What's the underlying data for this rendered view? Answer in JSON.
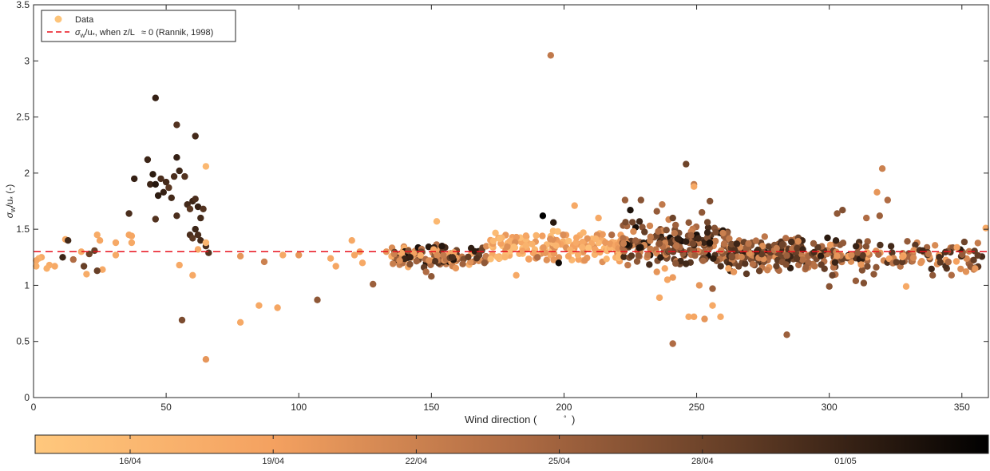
{
  "chart_data": {
    "type": "scatter",
    "xlabel": "Wind direction (",
    "xlabel_unit": "°",
    "ylabel": "σ_w/u_* (-)",
    "xlim": [
      0,
      360
    ],
    "ylim": [
      0,
      3.5
    ],
    "x_ticks": [
      0,
      50,
      100,
      150,
      200,
      250,
      300,
      350
    ],
    "y_ticks": [
      0,
      0.5,
      1,
      1.5,
      2,
      2.5,
      3,
      3.5
    ],
    "grid": false,
    "legend_position": "top-left",
    "legend": [
      {
        "label": "Data",
        "marker": "filled-circle",
        "color": "#fdc47a"
      },
      {
        "label_prefix": "σ",
        "label_sub1": "w",
        "label_mid": "/u",
        "label_sub2": "*",
        "label_suffix": ", when z/L",
        "label_approx": "≈ 0 (Rannik, 1998)",
        "style": "dashed-line",
        "color": "#e8101c"
      }
    ],
    "reference_line": {
      "y": 1.3,
      "color": "#e8101c",
      "style": "dashed"
    },
    "colorbar": {
      "orientation": "horizontal",
      "position": "bottom",
      "colormap": "copper-reversed",
      "colors": [
        "#ffc87d",
        "#f4a160",
        "#b06c44",
        "#5e3a24",
        "#000000"
      ],
      "tick_labels": [
        "16/04",
        "19/04",
        "22/04",
        "25/04",
        "28/04",
        "01/05"
      ]
    },
    "points": [
      [
        46,
        2.67,
        0.86
      ],
      [
        54,
        2.43,
        0.78
      ],
      [
        61,
        2.33,
        0.82
      ],
      [
        65,
        2.06,
        0.1
      ],
      [
        43,
        2.12,
        0.84
      ],
      [
        45,
        1.99,
        0.88
      ],
      [
        44,
        1.9,
        0.84
      ],
      [
        46,
        1.9,
        0.9
      ],
      [
        48,
        1.95,
        0.8
      ],
      [
        49,
        1.83,
        0.86
      ],
      [
        50,
        1.92,
        0.82
      ],
      [
        51,
        1.87,
        0.76
      ],
      [
        53,
        1.97,
        0.8
      ],
      [
        55,
        2.02,
        0.84
      ],
      [
        57,
        1.97,
        0.78
      ],
      [
        54,
        2.14,
        0.86
      ],
      [
        52,
        1.78,
        0.82
      ],
      [
        47,
        1.8,
        0.88
      ],
      [
        38,
        1.95,
        0.86
      ],
      [
        36,
        1.64,
        0.8
      ],
      [
        46,
        1.59,
        0.78
      ],
      [
        54,
        1.62,
        0.8
      ],
      [
        58,
        1.72,
        0.82
      ],
      [
        59,
        1.68,
        0.76
      ],
      [
        60,
        1.75,
        0.84
      ],
      [
        61,
        1.77,
        0.8
      ],
      [
        62,
        1.7,
        0.86
      ],
      [
        63,
        1.6,
        0.82
      ],
      [
        64,
        1.68,
        0.78
      ],
      [
        59,
        1.45,
        0.8
      ],
      [
        60,
        1.42,
        0.76
      ],
      [
        61,
        1.5,
        0.84
      ],
      [
        62,
        1.45,
        0.8
      ],
      [
        63,
        1.4,
        0.82
      ],
      [
        65,
        1.35,
        0.8
      ],
      [
        66,
        1.29,
        0.78
      ],
      [
        65,
        1.38,
        0.12
      ],
      [
        62,
        1.32,
        0.2
      ],
      [
        55,
        1.18,
        0.2
      ],
      [
        60,
        1.09,
        0.2
      ],
      [
        56,
        0.69,
        0.66
      ],
      [
        65,
        0.34,
        0.3
      ],
      [
        36,
        1.45,
        0.22
      ],
      [
        37,
        1.38,
        0.2
      ],
      [
        37,
        1.44,
        0.22
      ],
      [
        31,
        1.38,
        0.2
      ],
      [
        31,
        1.27,
        0.2
      ],
      [
        24,
        1.45,
        0.18
      ],
      [
        25,
        1.4,
        0.22
      ],
      [
        26,
        1.14,
        0.2
      ],
      [
        23,
        1.31,
        0.72
      ],
      [
        24,
        1.13,
        0.72
      ],
      [
        21,
        1.28,
        0.7
      ],
      [
        19,
        1.17,
        0.72
      ],
      [
        20,
        1.1,
        0.18
      ],
      [
        12,
        1.41,
        0.18
      ],
      [
        13,
        1.4,
        0.82
      ],
      [
        11,
        1.25,
        0.84
      ],
      [
        15,
        1.23,
        0.5
      ],
      [
        18,
        1.3,
        0.2
      ],
      [
        8,
        1.17,
        0.2
      ],
      [
        6,
        1.18,
        0.18
      ],
      [
        5,
        1.15,
        0.16
      ],
      [
        3,
        1.25,
        0.2
      ],
      [
        2,
        1.24,
        0.14
      ],
      [
        1,
        1.22,
        0.2
      ],
      [
        1,
        1.17,
        0.16
      ],
      [
        78,
        1.26,
        0.3
      ],
      [
        78,
        0.67,
        0.2
      ],
      [
        85,
        0.82,
        0.2
      ],
      [
        87,
        1.21,
        0.4
      ],
      [
        92,
        0.8,
        0.22
      ],
      [
        94,
        1.27,
        0.2
      ],
      [
        100,
        1.27,
        0.3
      ],
      [
        107,
        0.87,
        0.6
      ],
      [
        112,
        1.24,
        0.2
      ],
      [
        114,
        1.17,
        0.22
      ],
      [
        120,
        1.4,
        0.2
      ],
      [
        121,
        1.27,
        0.22
      ],
      [
        123,
        1.3,
        0.24
      ],
      [
        124,
        1.2,
        0.2
      ],
      [
        128,
        1.01,
        0.56
      ],
      [
        133,
        1.3,
        0.3
      ],
      [
        136,
        1.28,
        0.4
      ],
      [
        138,
        1.22,
        0.34
      ],
      [
        142,
        1.25,
        0.86
      ],
      [
        148,
        1.12,
        0.5
      ],
      [
        150,
        1.08,
        0.6
      ],
      [
        152,
        1.57,
        0.1
      ],
      [
        154,
        1.35,
        0.9
      ],
      [
        158,
        1.25,
        0.8
      ],
      [
        165,
        1.33,
        0.88
      ],
      [
        170,
        1.2,
        0.6
      ],
      [
        182,
        1.09,
        0.2
      ],
      [
        190,
        1.25,
        0.5
      ],
      [
        192,
        1.62,
        1.0
      ],
      [
        195,
        3.05,
        0.44
      ],
      [
        196,
        1.56,
        0.9
      ],
      [
        198,
        1.2,
        0.96
      ],
      [
        204,
        1.71,
        0.2
      ],
      [
        213,
        1.6,
        0.2
      ],
      [
        218,
        1.45,
        0.5
      ],
      [
        223,
        1.76,
        0.56
      ],
      [
        225,
        1.67,
        0.92
      ],
      [
        229,
        1.76,
        0.62
      ],
      [
        235,
        1.66,
        0.58
      ],
      [
        237,
        1.72,
        0.44
      ],
      [
        241,
        1.6,
        0.7
      ],
      [
        246,
        2.08,
        0.7
      ],
      [
        249,
        1.9,
        0.44
      ],
      [
        249,
        1.88,
        0.2
      ],
      [
        252,
        1.65,
        0.6
      ],
      [
        255,
        1.75,
        0.64
      ],
      [
        235,
        1.12,
        0.3
      ],
      [
        238,
        1.15,
        0.22
      ],
      [
        236,
        0.89,
        0.2
      ],
      [
        239,
        1.05,
        0.22
      ],
      [
        241,
        1.07,
        0.28
      ],
      [
        241,
        0.48,
        0.5
      ],
      [
        247,
        0.72,
        0.2
      ],
      [
        249,
        0.72,
        0.22
      ],
      [
        251,
        1.0,
        0.3
      ],
      [
        253,
        0.7,
        0.3
      ],
      [
        256,
        0.97,
        0.56
      ],
      [
        256,
        0.82,
        0.2
      ],
      [
        259,
        0.72,
        0.2
      ],
      [
        262,
        1.15,
        0.22
      ],
      [
        264,
        1.12,
        0.3
      ],
      [
        284,
        0.56,
        0.56
      ],
      [
        300,
        0.99,
        0.62
      ],
      [
        310,
        1.04,
        0.58
      ],
      [
        313,
        1.02,
        0.64
      ],
      [
        318,
        1.83,
        0.3
      ],
      [
        320,
        2.04,
        0.4
      ],
      [
        322,
        1.76,
        0.5
      ],
      [
        319,
        1.62,
        0.56
      ],
      [
        314,
        1.6,
        0.5
      ],
      [
        305,
        1.67,
        0.64
      ],
      [
        303,
        1.64,
        0.6
      ],
      [
        329,
        0.99,
        0.2
      ],
      [
        339,
        1.09,
        0.6
      ],
      [
        355,
        1.15,
        0.3
      ],
      [
        359,
        1.51,
        0.2
      ]
    ]
  }
}
